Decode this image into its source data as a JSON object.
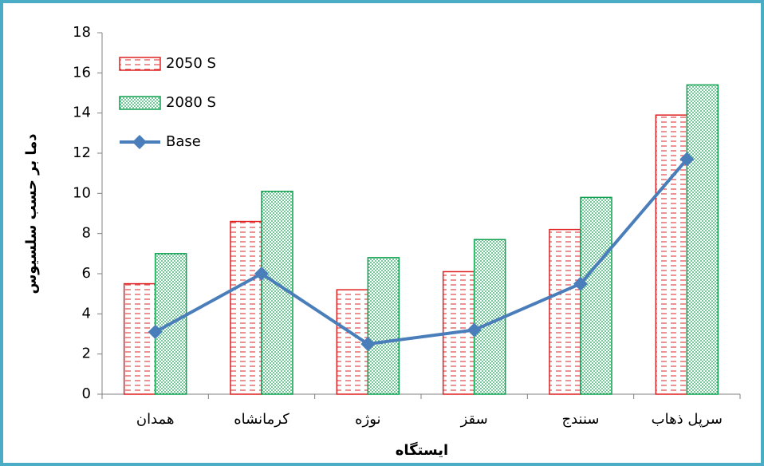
{
  "chart_data": {
    "type": "bar",
    "xlabel": "ایستگاه",
    "ylabel": "دما بر حسب سلسیوس",
    "categories": [
      "همدان",
      "کرمانشاه",
      "نوژه",
      "سقز",
      "سنندج",
      "سرپل ذهاب"
    ],
    "series": [
      {
        "name": "2050 S",
        "type": "bar",
        "color": "#e02020",
        "values": [
          5.5,
          8.6,
          5.2,
          6.1,
          8.2,
          13.9
        ]
      },
      {
        "name": "2080 S",
        "type": "bar",
        "color": "#10a050",
        "values": [
          7.0,
          10.1,
          6.8,
          7.7,
          9.8,
          15.4
        ]
      },
      {
        "name": "Base",
        "type": "line",
        "color": "#4a7ebb",
        "values": [
          3.1,
          6.0,
          2.5,
          3.2,
          5.5,
          11.7
        ]
      }
    ],
    "ylim": [
      0,
      18
    ],
    "yticks": [
      0,
      2,
      4,
      6,
      8,
      10,
      12,
      14,
      16,
      18
    ],
    "grid": false
  }
}
